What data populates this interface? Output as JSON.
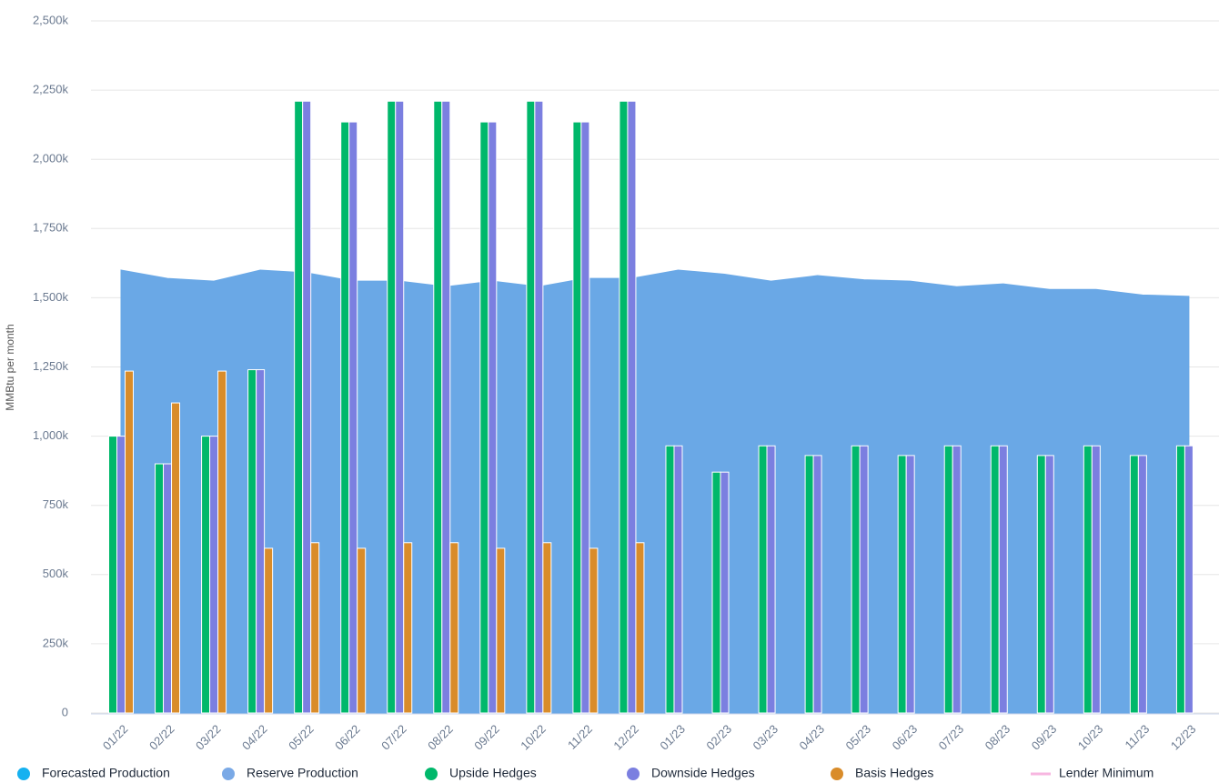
{
  "chart_data": {
    "type": "bar",
    "y_axis_label": "MMBtu per month",
    "categories": [
      "01/22",
      "02/22",
      "03/22",
      "04/22",
      "05/22",
      "06/22",
      "07/22",
      "08/22",
      "09/22",
      "10/22",
      "11/22",
      "12/22",
      "01/23",
      "02/23",
      "03/23",
      "04/23",
      "05/23",
      "06/23",
      "07/23",
      "08/23",
      "09/23",
      "10/23",
      "11/23",
      "12/23"
    ],
    "ylim": [
      0,
      2500000
    ],
    "yticks": [
      0,
      {
        "value": 250000,
        "label": "250k"
      },
      {
        "value": 500000,
        "label": "500k"
      },
      {
        "value": 750000,
        "label": "750k"
      },
      {
        "value": 1000000,
        "label": "1,000k"
      },
      {
        "value": 1250000,
        "label": "1,250k"
      },
      {
        "value": 1500000,
        "label": "1,500k"
      },
      {
        "value": 1750000,
        "label": "1,750k"
      },
      {
        "value": 2000000,
        "label": "2,000k"
      },
      {
        "value": 2250000,
        "label": "2,250k"
      },
      {
        "value": 2500000,
        "label": "2,500k"
      }
    ],
    "grid": true,
    "legend": "bottom",
    "series": [
      {
        "name": "Forecasted Production",
        "color": "#16b1f0",
        "kind": "line",
        "values": [
          null,
          null,
          null,
          null,
          null,
          null,
          null,
          null,
          null,
          null,
          null,
          null,
          null,
          null,
          null,
          null,
          null,
          null,
          null,
          null,
          null,
          null,
          null,
          null
        ]
      },
      {
        "name": "Reserve Production",
        "color": "#6aa8e6",
        "kind": "area",
        "values": [
          1600000,
          1570000,
          1560000,
          1600000,
          1590000,
          1560000,
          1560000,
          1540000,
          1560000,
          1540000,
          1570000,
          1570000,
          1600000,
          1585000,
          1560000,
          1580000,
          1565000,
          1560000,
          1540000,
          1550000,
          1530000,
          1530000,
          1510000,
          1505000
        ]
      },
      {
        "name": "Upside Hedges",
        "color": "#00b86b",
        "kind": "bar",
        "values": [
          1000000,
          900000,
          1000000,
          1240000,
          2210000,
          2135000,
          2210000,
          2210000,
          2135000,
          2210000,
          2135000,
          2210000,
          965000,
          870000,
          965000,
          930000,
          965000,
          930000,
          965000,
          965000,
          930000,
          965000,
          930000,
          965000
        ]
      },
      {
        "name": "Downside Hedges",
        "color": "#7b7fe0",
        "kind": "bar",
        "values": [
          1000000,
          900000,
          1000000,
          1240000,
          2210000,
          2135000,
          2210000,
          2210000,
          2135000,
          2210000,
          2135000,
          2210000,
          965000,
          870000,
          965000,
          930000,
          965000,
          930000,
          965000,
          965000,
          930000,
          965000,
          930000,
          965000
        ]
      },
      {
        "name": "Basis Hedges",
        "color": "#d98c2a",
        "kind": "bar",
        "values": [
          1235000,
          1120000,
          1235000,
          595000,
          615000,
          595000,
          615000,
          615000,
          595000,
          615000,
          595000,
          615000,
          null,
          null,
          null,
          null,
          null,
          null,
          null,
          null,
          null,
          null,
          null,
          null
        ]
      },
      {
        "name": "Lender Minimum",
        "color": "#f7b6e0",
        "kind": "legend-line",
        "values": [
          null,
          null,
          null,
          null,
          null,
          null,
          null,
          null,
          null,
          null,
          null,
          null,
          null,
          null,
          null,
          null,
          null,
          null,
          null,
          null,
          null,
          null,
          null,
          null
        ]
      }
    ]
  }
}
